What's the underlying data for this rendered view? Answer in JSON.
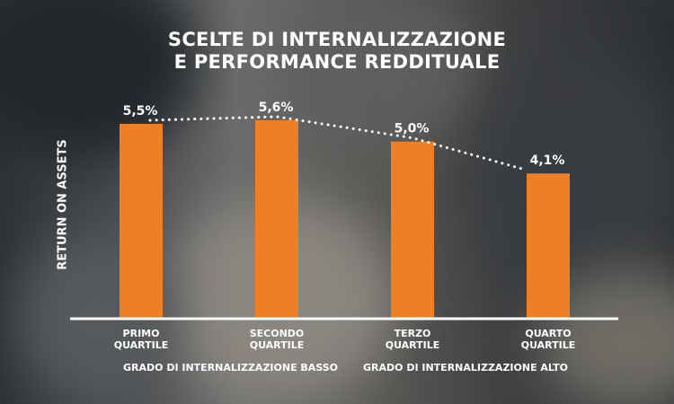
{
  "title_lines": [
    "SCELTE DI INTERNALIZZAZIONE",
    "E PERFORMANCE REDDITUALE"
  ],
  "ylabel": "RETURN ON ASSETS",
  "categories": [
    [
      "PRIMO",
      "QUARTILE"
    ],
    [
      "SECONDO",
      "QUARTILE"
    ],
    [
      "TERZO",
      "QUARTILE"
    ],
    [
      "QUARTO",
      "QUARTILE"
    ]
  ],
  "group_labels": [
    "GRADO DI INTERNALIZZAZIONE BASSO",
    "GRADO DI INTERNALIZZAZIONE ALTO"
  ],
  "colors": {
    "bar": "#EE7F24",
    "text": "#FFFFFF",
    "axis": "#FFFFFF"
  },
  "chart_data": {
    "type": "bar",
    "title": "SCELTE DI INTERNALIZZAZIONE E PERFORMANCE REDDITUALE",
    "ylabel": "RETURN ON ASSETS",
    "xlabel": "",
    "categories": [
      "PRIMO QUARTILE",
      "SECONDO QUARTILE",
      "TERZO QUARTILE",
      "QUARTO QUARTILE"
    ],
    "values": [
      5.5,
      5.6,
      5.0,
      4.1
    ],
    "value_labels": [
      "5,5%",
      "5,6%",
      "5,0%",
      "4,1%"
    ],
    "unit": "%",
    "trendline": "dotted",
    "ylim": [
      0,
      6.2
    ],
    "grid": false,
    "legend": "none"
  }
}
